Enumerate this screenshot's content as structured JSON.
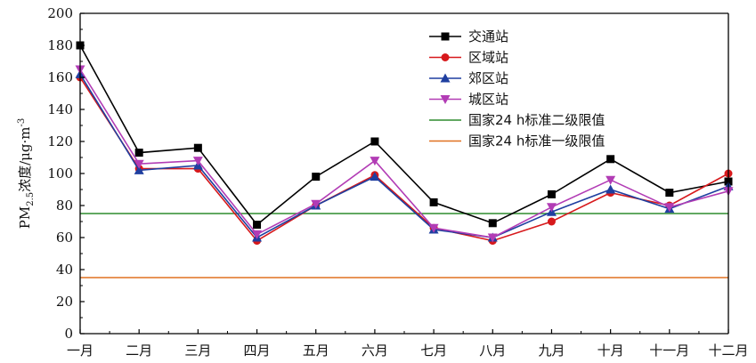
{
  "chart_data": {
    "type": "line",
    "categories": [
      "一月",
      "二月",
      "三月",
      "四月",
      "五月",
      "六月",
      "七月",
      "八月",
      "九月",
      "十月",
      "十一月",
      "十二月"
    ],
    "ylabel": {
      "main": "PM",
      "sub": "2.5",
      "rest": "浓度/μg·m",
      "sup": "-3"
    },
    "ylim": [
      0,
      200
    ],
    "yticks": [
      "0",
      "20",
      "40",
      "60",
      "80",
      "100",
      "120",
      "140",
      "160",
      "180",
      "200"
    ],
    "grid": false,
    "legend_position": "top-right",
    "series": [
      {
        "name": "交通站",
        "color": "#000000",
        "marker": "square",
        "values": [
          180,
          113,
          116,
          68,
          98,
          120,
          82,
          69,
          87,
          109,
          88,
          95
        ]
      },
      {
        "name": "区域站",
        "color": "#d7191c",
        "marker": "circle",
        "values": [
          160,
          103,
          103,
          58,
          80,
          99,
          66,
          58,
          70,
          88,
          80,
          100
        ]
      },
      {
        "name": "郊区站",
        "color": "#1f3fa0",
        "marker": "triangle-up",
        "values": [
          162,
          102,
          105,
          60,
          80,
          98,
          65,
          60,
          76,
          90,
          78,
          92
        ]
      },
      {
        "name": "城区站",
        "color": "#b23cb5",
        "marker": "triangle-down",
        "values": [
          165,
          106,
          108,
          62,
          81,
          108,
          66,
          60,
          79,
          96,
          79,
          89
        ]
      }
    ],
    "reference_lines": [
      {
        "name": "国家24 h标准二级限值",
        "color": "#2e8b2e",
        "value": 75
      },
      {
        "name": "国家24 h标准一级限值",
        "color": "#e07020",
        "value": 35
      }
    ]
  }
}
